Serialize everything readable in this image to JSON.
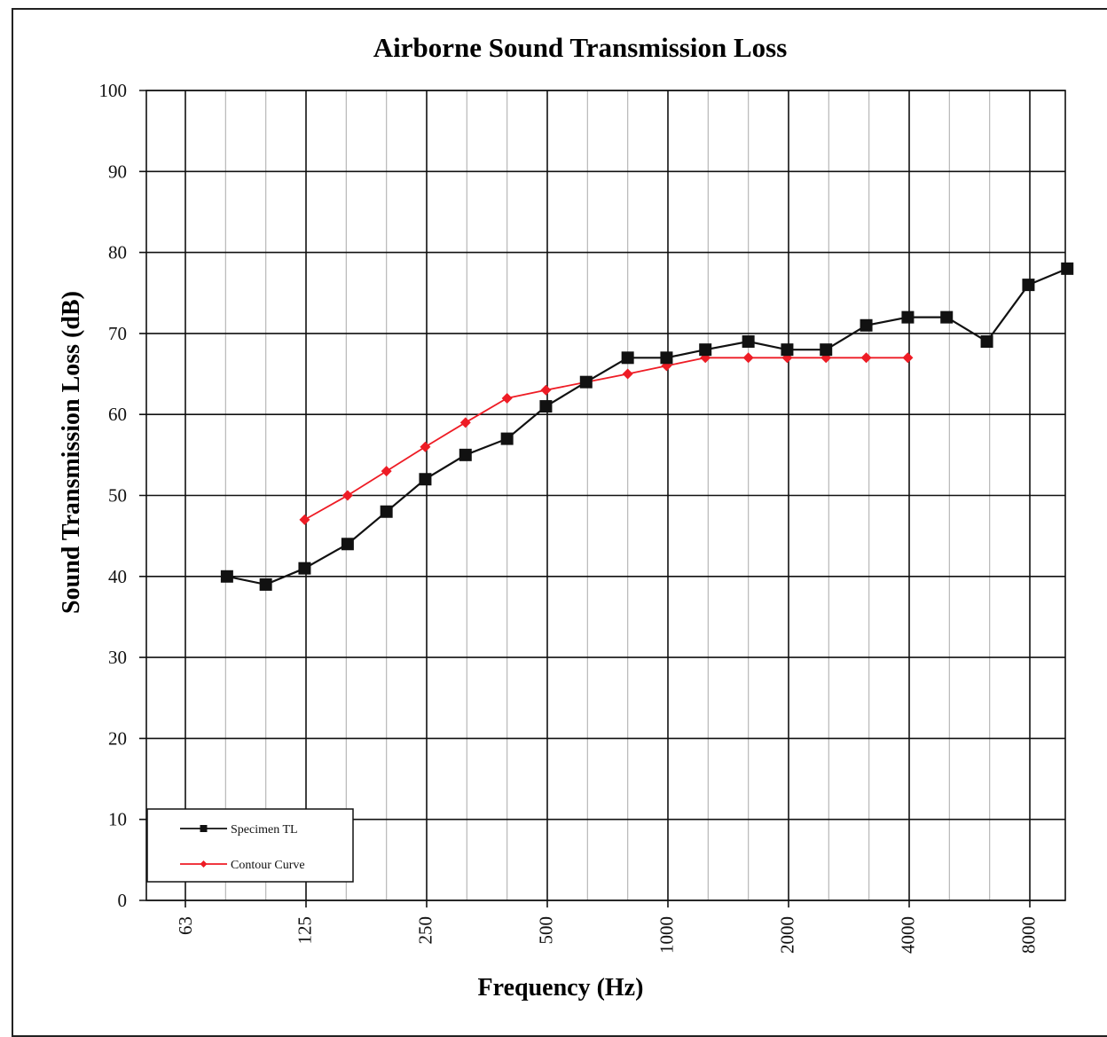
{
  "chart_data": {
    "type": "line",
    "title": "Airborne Sound Transmission Loss",
    "xlabel": "Frequency (Hz)",
    "ylabel": "Sound Transmission Loss (dB)",
    "x_scale": "log (1/3-octave bands)",
    "x_tick_labels": [
      "63",
      "125",
      "250",
      "500",
      "1000",
      "2000",
      "4000",
      "8000"
    ],
    "y_ticks": [
      0,
      10,
      20,
      30,
      40,
      50,
      60,
      70,
      80,
      90,
      100
    ],
    "ylim": [
      0,
      100
    ],
    "grid": true,
    "legend_position": "bottom-left",
    "series": [
      {
        "name": "Specimen TL",
        "color": "#111111",
        "marker": "square",
        "x": [
          80,
          100,
          125,
          160,
          200,
          250,
          315,
          400,
          500,
          630,
          800,
          1000,
          1250,
          1600,
          2000,
          2500,
          3150,
          4000,
          5000,
          6300,
          8000,
          10000
        ],
        "values": [
          40,
          39,
          41,
          44,
          48,
          52,
          55,
          57,
          61,
          64,
          67,
          67,
          68,
          69,
          68,
          68,
          71,
          72,
          72,
          69,
          76,
          78
        ]
      },
      {
        "name": "Contour Curve",
        "color": "#ee1c25",
        "marker": "diamond",
        "x": [
          125,
          160,
          200,
          250,
          315,
          400,
          500,
          630,
          800,
          1000,
          1250,
          1600,
          2000,
          2500,
          3150,
          4000
        ],
        "values": [
          47,
          50,
          53,
          56,
          59,
          62,
          63,
          64,
          65,
          66,
          67,
          67,
          67,
          67,
          67,
          67
        ]
      }
    ]
  }
}
